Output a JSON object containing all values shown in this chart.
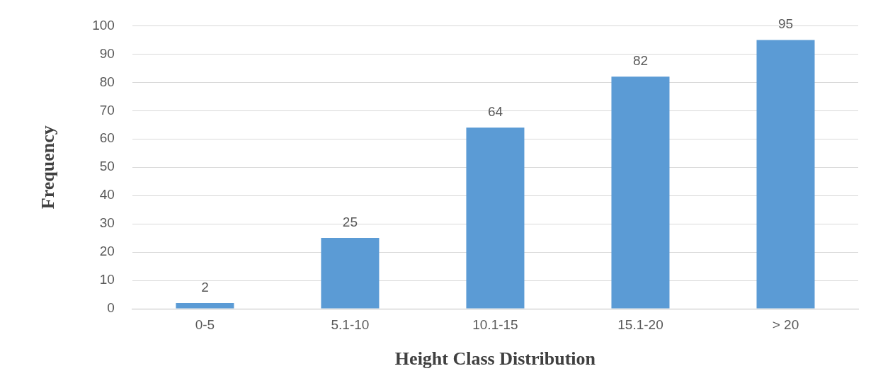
{
  "chart_data": {
    "type": "bar",
    "xlabel": "Height Class Distribution",
    "ylabel": "Frequency",
    "categories": [
      "0-5",
      "5.1-10",
      "10.1-15",
      "15.1-20",
      "> 20"
    ],
    "values": [
      2,
      25,
      64,
      82,
      95
    ],
    "color": "#5b9bd5",
    "ylim": [
      0,
      100
    ],
    "yticks": [
      0,
      10,
      20,
      30,
      40,
      50,
      60,
      70,
      80,
      90,
      100
    ],
    "grid": "y",
    "data_labels": true,
    "legend": false
  }
}
